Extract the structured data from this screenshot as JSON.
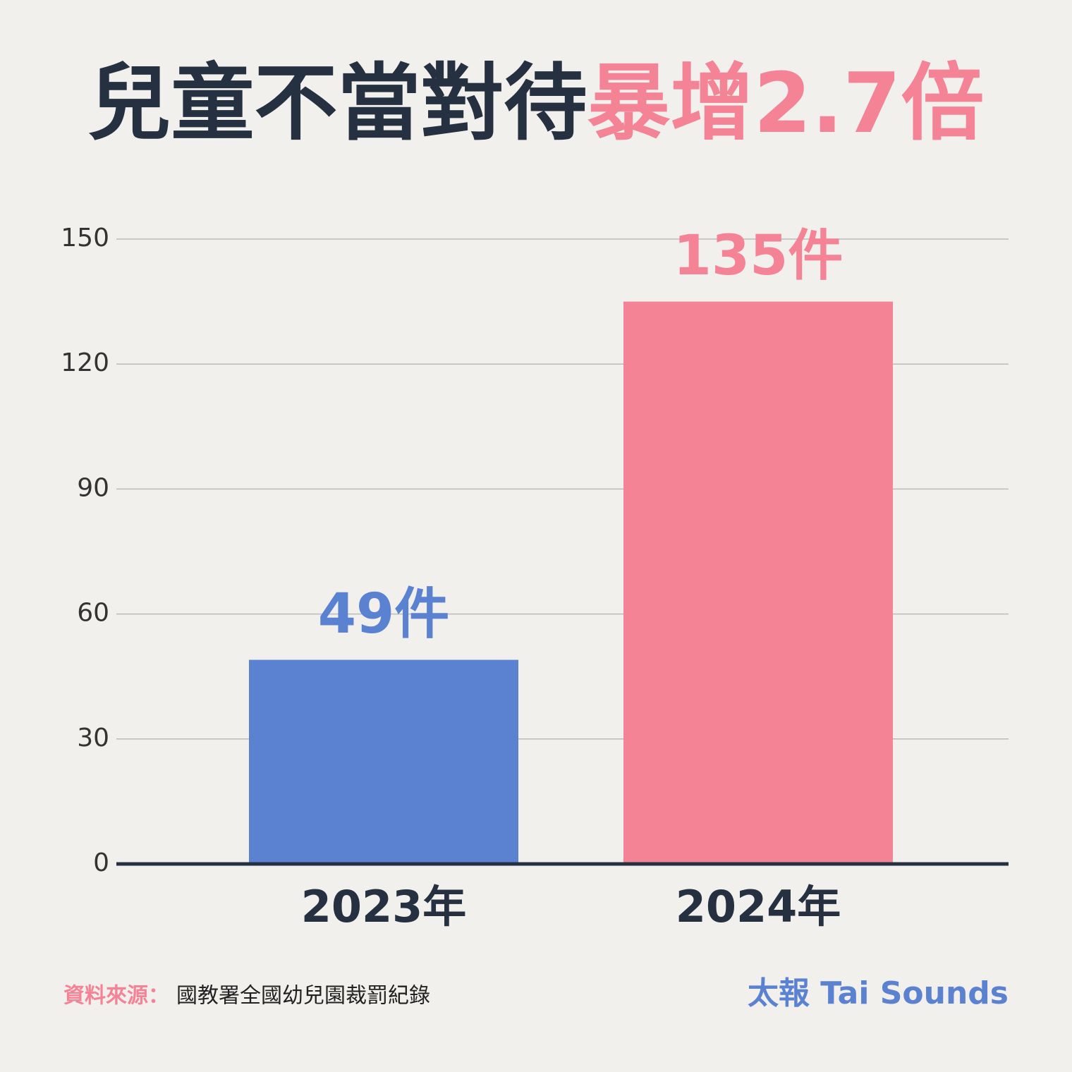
{
  "chart_data": {
    "type": "bar",
    "title_parts": [
      "兒童不當對待",
      "暴增2.7倍"
    ],
    "title_colors": [
      "#253040",
      "#f48396"
    ],
    "categories": [
      "2023年",
      "2024年"
    ],
    "values": [
      49,
      135
    ],
    "value_labels": [
      "49件",
      "135件"
    ],
    "colors": [
      "#5b82d1",
      "#f48396"
    ],
    "ylim": [
      0,
      150
    ],
    "yticks": [
      0,
      30,
      60,
      90,
      120,
      150
    ],
    "grid": true,
    "source_label": "資料來源：",
    "source": "國教署全國幼兒園裁罰紀錄",
    "brand": "太報 Tai Sounds"
  }
}
